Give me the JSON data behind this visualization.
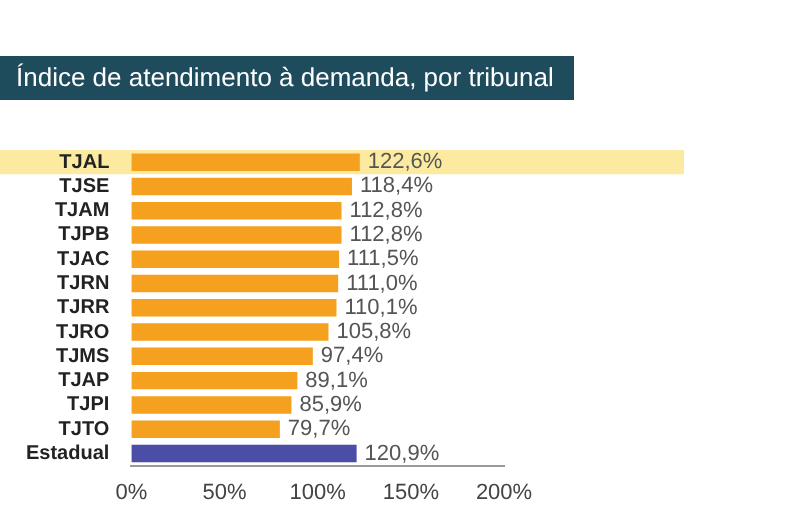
{
  "chart_data": {
    "type": "bar",
    "orientation": "horizontal",
    "title": "Índice de atendimento à demanda, por tribunal",
    "categories": [
      "TJAL",
      "TJSE",
      "TJAM",
      "TJPB",
      "TJAC",
      "TJRN",
      "TJRR",
      "TJRO",
      "TJMS",
      "TJAP",
      "TJPI",
      "TJTO",
      "Estadual"
    ],
    "values": [
      122.6,
      118.4,
      112.8,
      112.8,
      111.5,
      111.0,
      110.1,
      105.8,
      97.4,
      89.1,
      85.9,
      79.7,
      120.9
    ],
    "value_labels": [
      "122,6%",
      "118,4%",
      "112,8%",
      "112,8%",
      "111,5%",
      "111,0%",
      "110,1%",
      "105,8%",
      "97,4%",
      "89,1%",
      "85,9%",
      "79,7%",
      "120,9%"
    ],
    "colors": [
      "#f5a01e",
      "#f5a01e",
      "#f5a01e",
      "#f5a01e",
      "#f5a01e",
      "#f5a01e",
      "#f5a01e",
      "#f5a01e",
      "#f5a01e",
      "#f5a01e",
      "#f5a01e",
      "#f5a01e",
      "#4a4ea6"
    ],
    "xlim": [
      0,
      200
    ],
    "xticks": [
      {
        "value": 0,
        "label": "0%"
      },
      {
        "value": 50,
        "label": "50%"
      },
      {
        "value": 100,
        "label": "100%"
      },
      {
        "value": 150,
        "label": "150%"
      },
      {
        "value": 200,
        "label": "200%"
      }
    ],
    "bands": [
      {
        "axis": "y",
        "from": "TJAL",
        "to": "TJAL",
        "color": "#fbeaa0"
      }
    ],
    "grid": false,
    "legend": false
  }
}
